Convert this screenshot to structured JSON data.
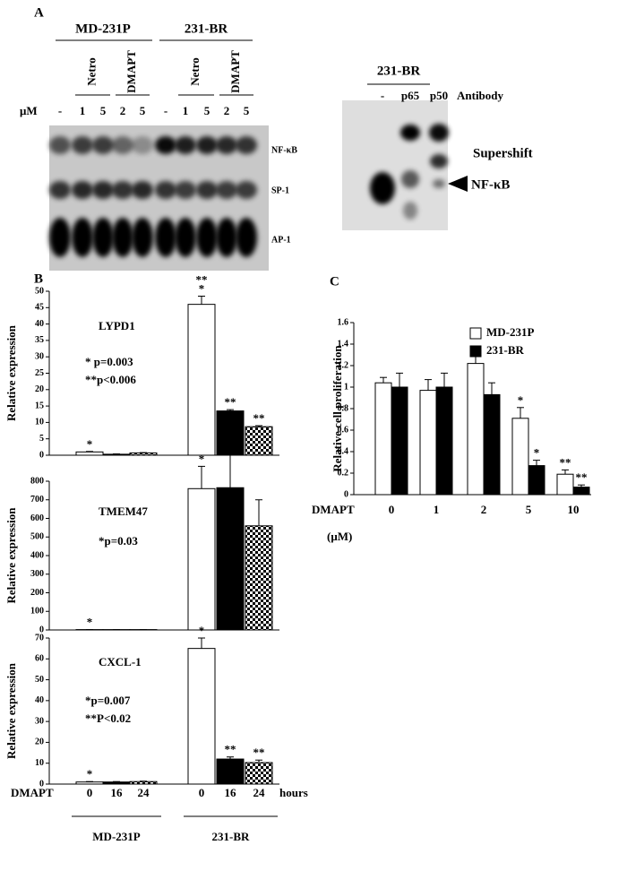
{
  "panel_a": {
    "label": "A",
    "groups": [
      "MD-231P",
      "231-BR"
    ],
    "treatments": [
      "Netro",
      "DMAPT",
      "Netro",
      "DMAPT"
    ],
    "dose_label": "μM",
    "lanes": [
      "-",
      "1",
      "5",
      "2",
      "5",
      "-",
      "1",
      "5",
      "2",
      "5"
    ],
    "bands": [
      "NF-κB",
      "SP-1",
      "AP-1"
    ],
    "supershift": {
      "title": "231-BR",
      "lanes": [
        "-",
        "p65",
        "p50"
      ],
      "lane_title": "Antibody",
      "labels": [
        "Supershift",
        "NF-κB"
      ]
    }
  },
  "panel_b_label": "B",
  "panel_c_label": "C",
  "chart_data": [
    {
      "type": "bar",
      "title": "LYPD1",
      "notes": [
        "* p=0.003",
        "**p<0.006"
      ],
      "y_label": "Relative expression",
      "ylim": [
        0,
        50
      ],
      "yticks": [
        0,
        5,
        10,
        15,
        20,
        25,
        30,
        35,
        40,
        45,
        50
      ],
      "values": [
        1,
        0.3,
        0.7,
        46,
        13.5,
        8.7
      ],
      "errors": [
        0.15,
        0.1,
        0.1,
        2.5,
        0.4,
        0.3
      ],
      "fills": [
        "white",
        "black",
        "checker",
        "white",
        "black",
        "checker"
      ],
      "bar_labels": [
        [
          "*"
        ],
        null,
        null,
        [
          "*",
          "**"
        ],
        [
          "**"
        ],
        [
          "**"
        ]
      ]
    },
    {
      "type": "bar",
      "title": "TMEM47",
      "notes": [
        "*p=0.03"
      ],
      "y_label": "Relative expression",
      "ylim": [
        0,
        800
      ],
      "yticks": [
        0,
        100,
        200,
        300,
        400,
        500,
        600,
        700,
        800
      ],
      "values": [
        2,
        2,
        2,
        760,
        765,
        560
      ],
      "errors": [
        0,
        0,
        0,
        120,
        180,
        140
      ],
      "fills": [
        "white",
        "black",
        "checker",
        "white",
        "black",
        "checker"
      ],
      "bar_labels": [
        [
          "*"
        ],
        null,
        null,
        [
          "*"
        ],
        null,
        null
      ]
    },
    {
      "type": "bar",
      "title": "CXCL-1",
      "notes": [
        "*p=0.007",
        "**P<0.02"
      ],
      "y_label": "Relative expression",
      "ylim": [
        0,
        70
      ],
      "yticks": [
        0,
        10,
        20,
        30,
        40,
        50,
        60,
        70
      ],
      "values": [
        1,
        1,
        1.2,
        65,
        12,
        10.3
      ],
      "errors": [
        0.2,
        0.2,
        0.2,
        5,
        1,
        1.2
      ],
      "fills": [
        "white",
        "black",
        "checker",
        "white",
        "black",
        "checker"
      ],
      "bar_labels": [
        [
          "*"
        ],
        null,
        null,
        [
          "*"
        ],
        [
          "**"
        ],
        [
          "**"
        ]
      ],
      "x_label": "DMAPT",
      "categories": [
        "0",
        "16",
        "24",
        "0",
        "16",
        "24"
      ],
      "x_unit": "hours",
      "groups": [
        "MD-231P",
        "231-BR"
      ]
    },
    {
      "type": "grouped_bar",
      "y_label": "Relative cell proliferation",
      "x_label": "DMAPT",
      "x_unit": "(μM)",
      "categories": [
        "0",
        "1",
        "2",
        "5",
        "10"
      ],
      "ylim": [
        0,
        1.6
      ],
      "yticks": [
        0,
        0.2,
        0.4,
        0.6,
        0.8,
        1,
        1.2,
        1.4,
        1.6
      ],
      "legend": "top-right",
      "series": [
        {
          "name": "MD-231P",
          "fill": "white",
          "values": [
            1.04,
            0.97,
            1.22,
            0.71,
            0.19
          ],
          "errors": [
            0.05,
            0.1,
            0.14,
            0.1,
            0.04
          ],
          "bar_labels": [
            null,
            null,
            null,
            [
              "*"
            ],
            [
              "**"
            ]
          ]
        },
        {
          "name": "231-BR",
          "fill": "black",
          "values": [
            1.0,
            1.0,
            0.93,
            0.27,
            0.07
          ],
          "errors": [
            0.13,
            0.13,
            0.11,
            0.05,
            0.02
          ],
          "bar_labels": [
            null,
            null,
            null,
            [
              "*"
            ],
            [
              "**"
            ]
          ]
        }
      ]
    }
  ]
}
